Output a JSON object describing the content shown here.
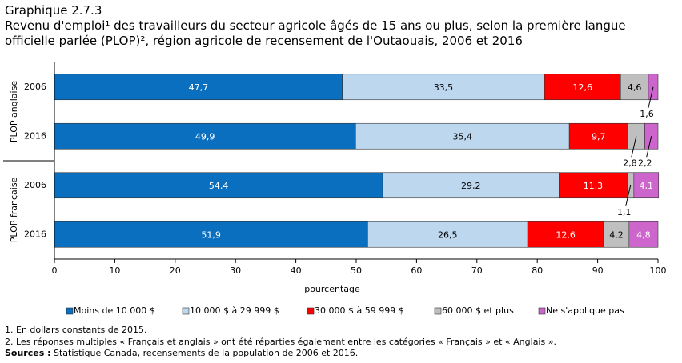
{
  "chart_data": {
    "type": "stacked-barh",
    "title": "Graphique 2.7.3",
    "subtitle": "Revenu d'emploi¹ des travailleurs du secteur agricole âgés de 15 ans ou plus, selon la première langue officielle parlée (PLOP)², région agricole de recensement de l'Outaouais, 2006 et 2016",
    "groups": [
      {
        "name": "PLOP anglaise",
        "categories": [
          "2006",
          "2016"
        ]
      },
      {
        "name": "PLOP française",
        "categories": [
          "2006",
          "2016"
        ]
      }
    ],
    "series": [
      {
        "name": "Moins de 10 000 $",
        "color": "#0b6fbf",
        "values": [
          47.7,
          49.9,
          54.4,
          51.9
        ],
        "value_labels": [
          "47,7",
          "49,9",
          "54,4",
          "51,9"
        ]
      },
      {
        "name": "10 000 $ à 29 999 $",
        "color": "#bdd7ee",
        "values": [
          33.5,
          35.4,
          29.2,
          26.5
        ],
        "value_labels": [
          "33,5",
          "35,4",
          "29,2",
          "26,5"
        ]
      },
      {
        "name": "30 000 $ à 59 999 $",
        "color": "#ff0000",
        "values": [
          12.6,
          9.7,
          11.3,
          12.6
        ],
        "value_labels": [
          "12,6",
          "9,7",
          "11,3",
          "12,6"
        ]
      },
      {
        "name": "60 000 $ et plus",
        "color": "#bfbfbf",
        "values": [
          4.6,
          2.8,
          1.1,
          4.2
        ],
        "value_labels": [
          "4,6",
          "2,8",
          "1,1",
          "4,2"
        ]
      },
      {
        "name": "Ne s'applique pas",
        "color": "#cc66cc",
        "values": [
          1.6,
          2.2,
          4.1,
          4.8
        ],
        "value_labels": [
          "1,6",
          "2,2",
          "4,1",
          "4,8"
        ]
      }
    ],
    "xlim": [
      0,
      100
    ],
    "xticks": [
      0,
      10,
      20,
      30,
      40,
      50,
      60,
      70,
      80,
      90,
      100
    ],
    "xlabel": "pourcentage",
    "notes": [
      "1. En dollars constants de 2015.",
      "2. Les réponses multiples « Français et anglais » ont été réparties également entre les catégories « Français » et « Anglais »."
    ],
    "source_label": "Sources :",
    "source_text": "Statistique Canada, recensements de la population de 2006 et 2016."
  }
}
